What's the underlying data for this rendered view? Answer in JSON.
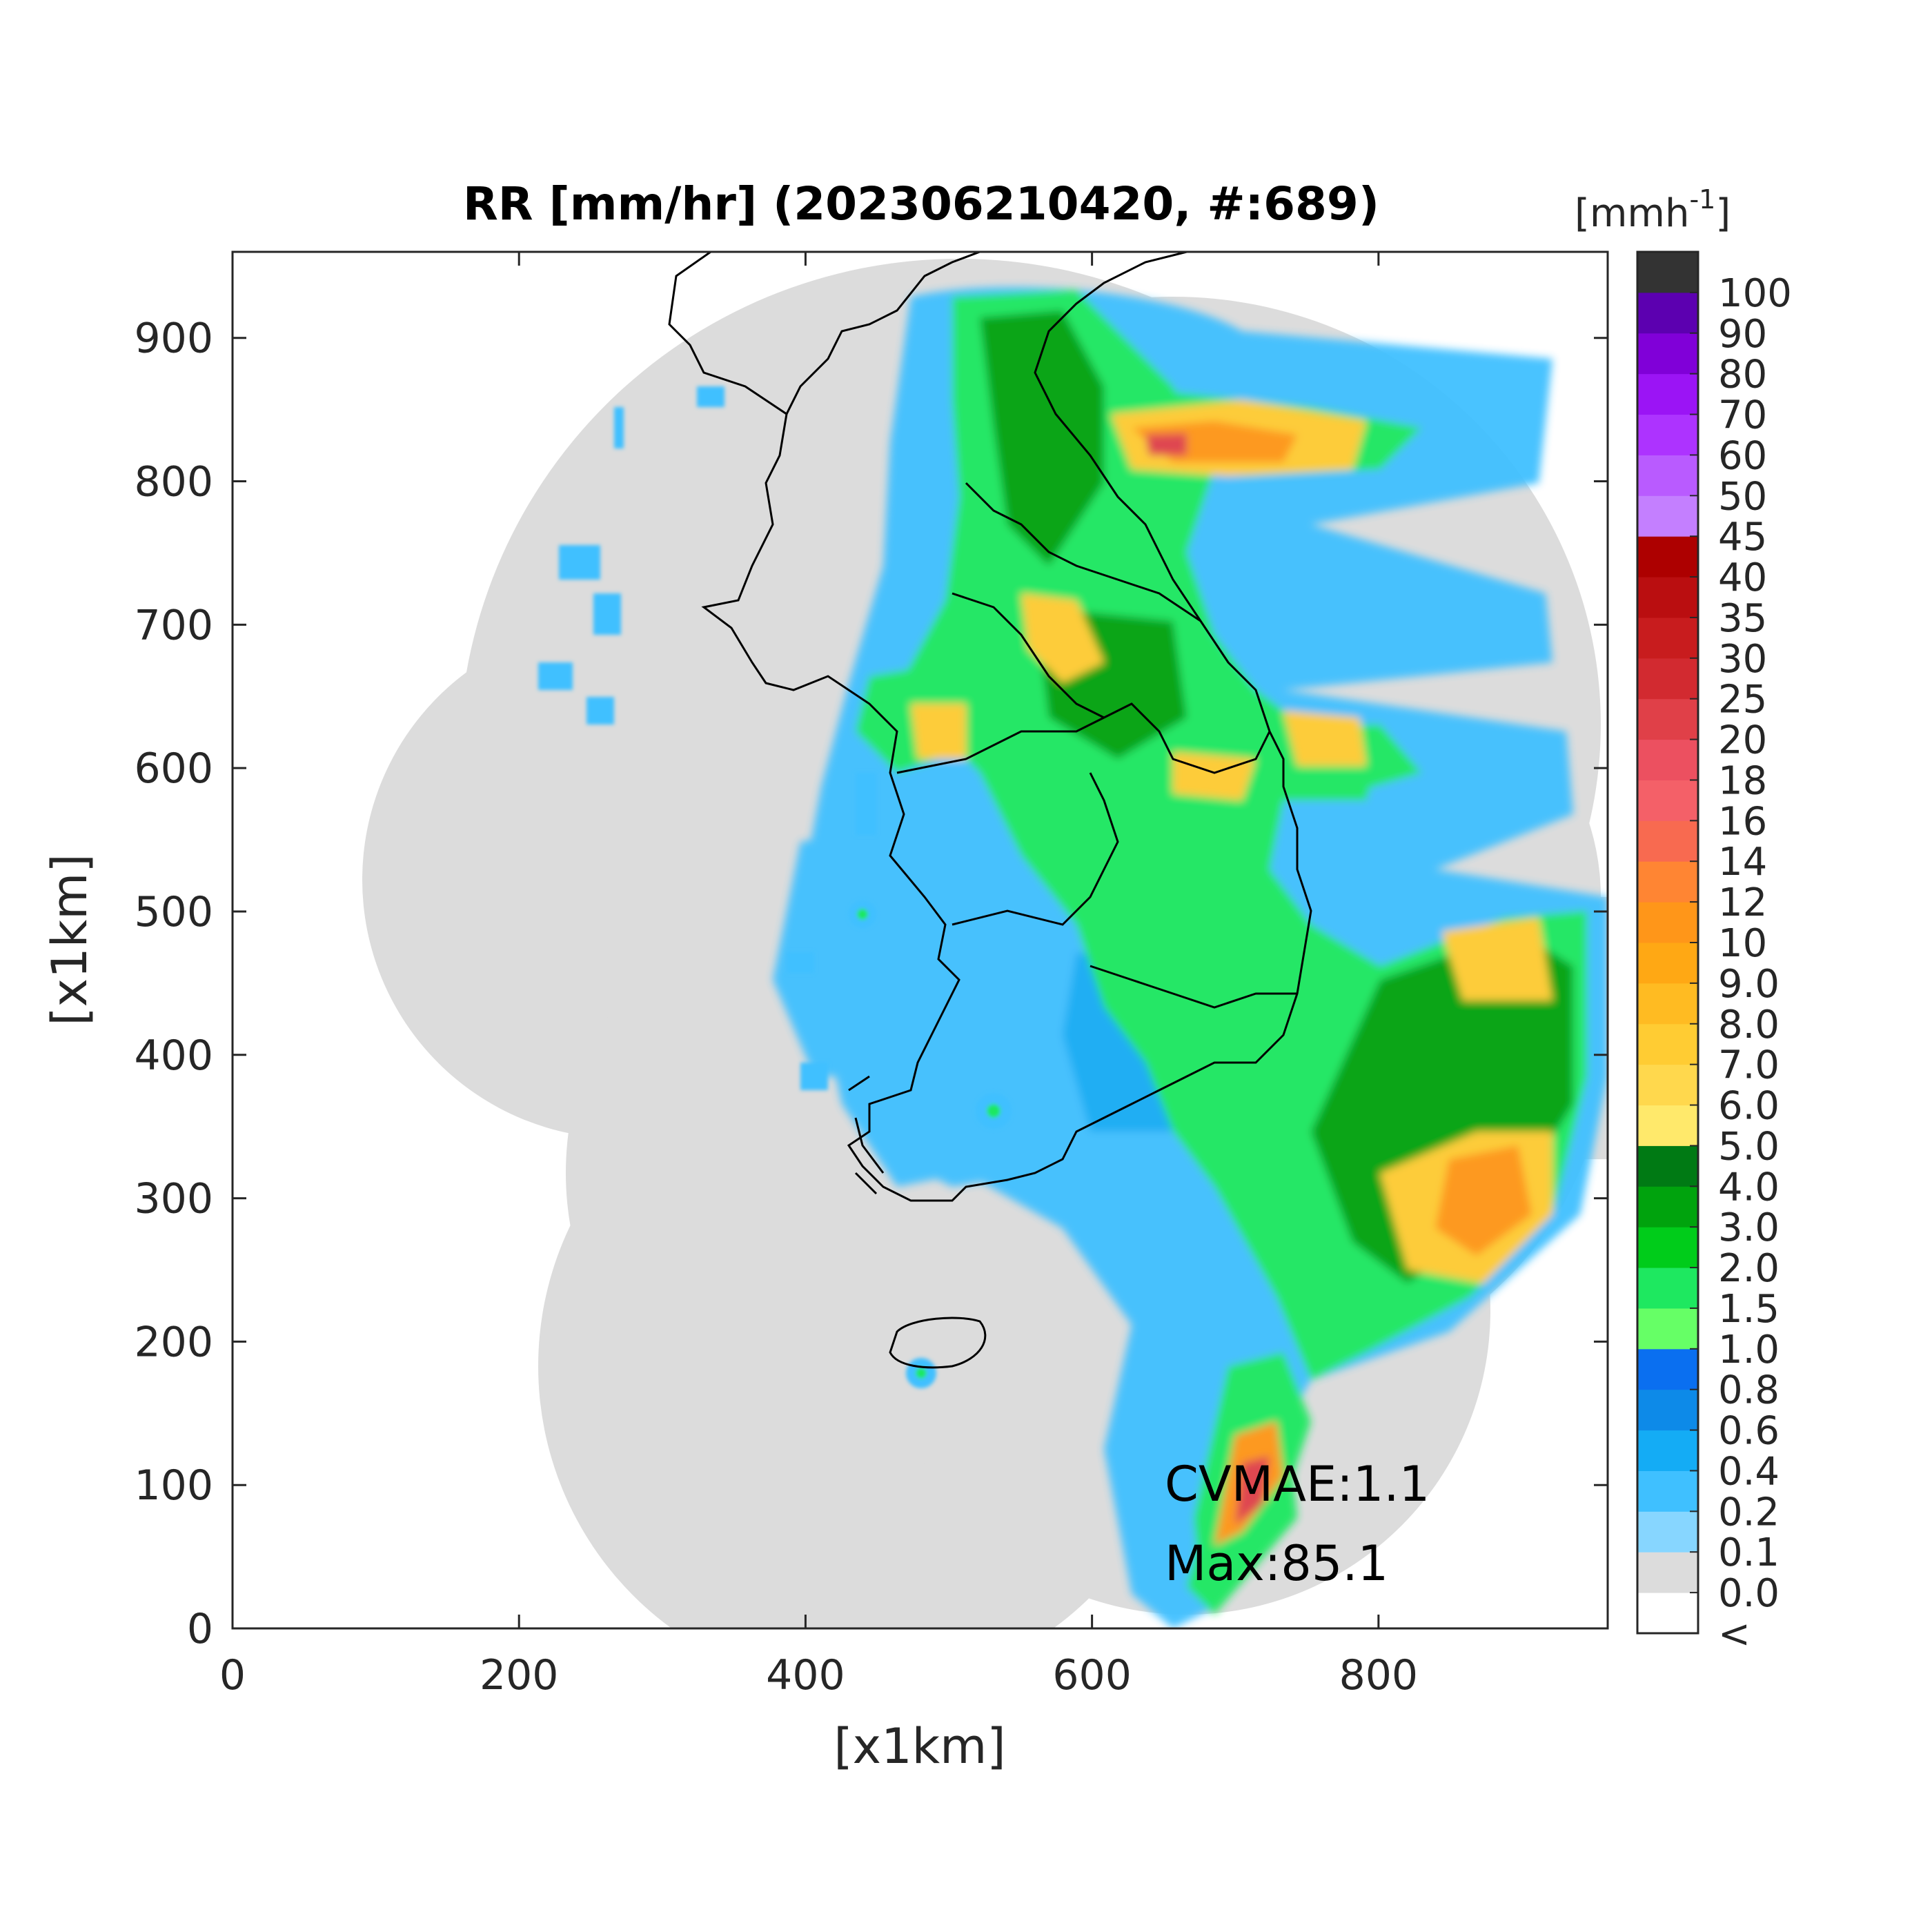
{
  "chart_data": {
    "type": "heatmap",
    "title": "RR [mm/hr] (202306210420, #:689)",
    "xlabel": "[x1km]",
    "ylabel": "[x1km]",
    "xlim": [
      0,
      960
    ],
    "ylim": [
      0,
      960
    ],
    "xticks": [
      "0",
      "200",
      "400",
      "600",
      "800"
    ],
    "yticks": [
      "0",
      "100",
      "200",
      "300",
      "400",
      "500",
      "600",
      "700",
      "800",
      "900"
    ],
    "colorbar": {
      "title": "[mmh",
      "title_exp": "-1",
      "title_close": "]",
      "below_label": "<",
      "levels": [
        "0.0",
        "0.1",
        "0.2",
        "0.4",
        "0.6",
        "0.8",
        "1.0",
        "1.5",
        "2.0",
        "3.0",
        "4.0",
        "5.0",
        "6.0",
        "7.0",
        "8.0",
        "9.0",
        "10",
        "12",
        "14",
        "16",
        "18",
        "20",
        "25",
        "30",
        "35",
        "40",
        "45",
        "50",
        "60",
        "70",
        "80",
        "90",
        "100"
      ],
      "colors": [
        "#ffffff",
        "#dcdcdc",
        "#87d6ff",
        "#3fc0ff",
        "#14acf5",
        "#0d8ae8",
        "#0a6ff0",
        "#66ff66",
        "#1ee860",
        "#00cc1a",
        "#00a30d",
        "#007a14",
        "#ffe96b",
        "#ffd84d",
        "#ffcc33",
        "#ffbb22",
        "#ffa814",
        "#ff9619",
        "#ff8533",
        "#f86a50",
        "#f46068",
        "#ec5060",
        "#e04048",
        "#d22a30",
        "#c81c1e",
        "#ba0e10",
        "#ad0000",
        "#c47fff",
        "#b95bff",
        "#ad33ff",
        "#9b14f5",
        "#8000d8",
        "#5c00b0",
        "#333333"
      ]
    },
    "annotations": [
      "CVMAE:1.1",
      "Max:85.1"
    ]
  }
}
